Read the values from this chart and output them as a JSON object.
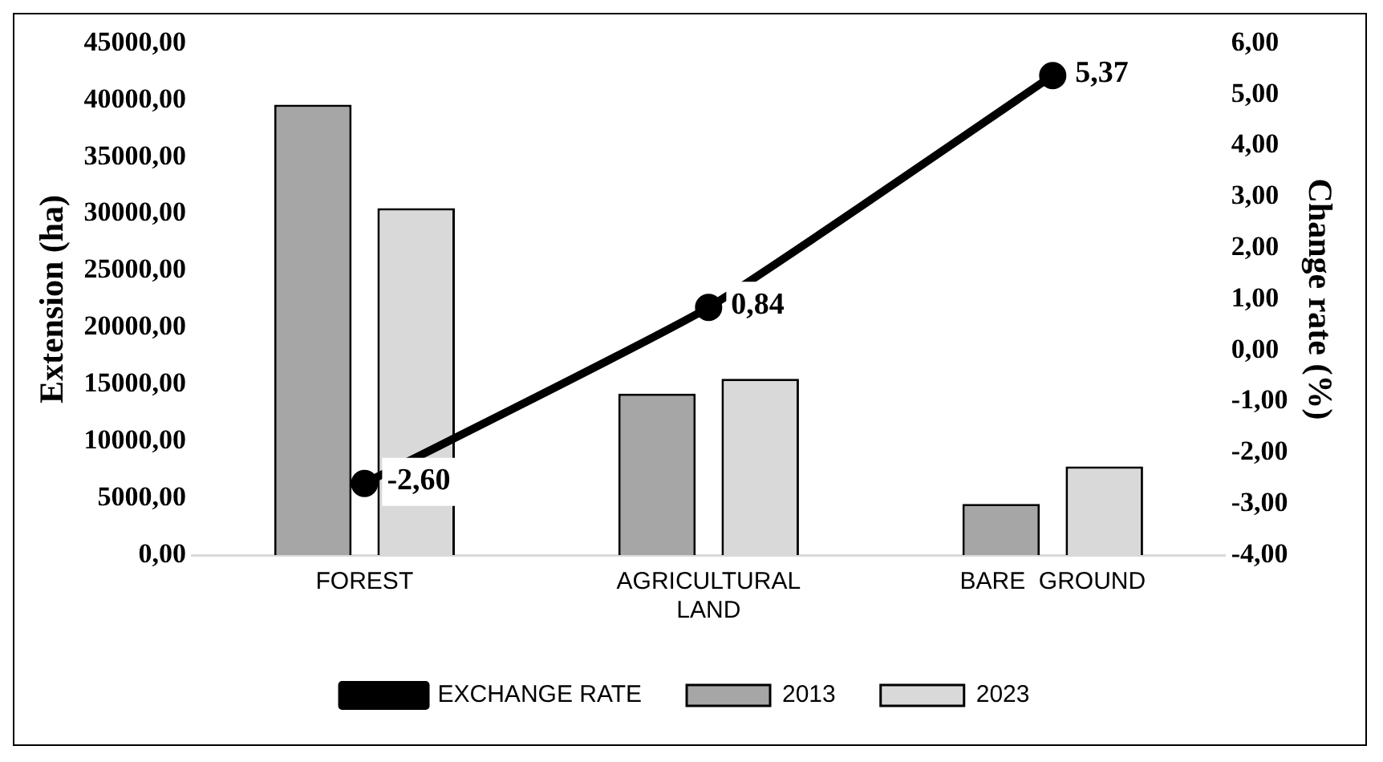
{
  "chart_data": {
    "type": "bar",
    "categories": [
      "FOREST",
      "AGRICULTURAL LAND",
      "BARE  GROUND"
    ],
    "ylabel": "Extension (ha)",
    "y2label": "Change rate (%)",
    "series": [
      {
        "name": "2013",
        "color": "#a6a6a6",
        "values": [
          39600,
          14200,
          4500
        ]
      },
      {
        "name": "2023",
        "color": "#d9d9d9",
        "values": [
          30500,
          15500,
          7800
        ]
      },
      {
        "name": "EXCHANGE RATE",
        "type": "line",
        "axis": "y2",
        "color": "#000000",
        "marker": "circle",
        "values": [
          -2.6,
          0.84,
          5.37
        ],
        "value_labels": [
          "-2,60",
          "0,84",
          "5,37"
        ]
      }
    ],
    "ylim": [
      0,
      45000
    ],
    "yticks": [
      {
        "value": 0,
        "label": "0,00"
      },
      {
        "value": 5000,
        "label": "5000,00"
      },
      {
        "value": 10000,
        "label": "10000,00"
      },
      {
        "value": 15000,
        "label": "15000,00"
      },
      {
        "value": 20000,
        "label": "20000,00"
      },
      {
        "value": 25000,
        "label": "25000,00"
      },
      {
        "value": 30000,
        "label": "30000,00"
      },
      {
        "value": 35000,
        "label": "35000,00"
      },
      {
        "value": 40000,
        "label": "40000,00"
      },
      {
        "value": 45000,
        "label": "45000,00"
      }
    ],
    "y2lim": [
      -4,
      6
    ],
    "y2ticks": [
      {
        "value": -4,
        "label": "-4,00"
      },
      {
        "value": -3,
        "label": "-3,00"
      },
      {
        "value": -2,
        "label": "-2,00"
      },
      {
        "value": -1,
        "label": "-1,00"
      },
      {
        "value": 0,
        "label": "0,00"
      },
      {
        "value": 1,
        "label": "1,00"
      },
      {
        "value": 2,
        "label": "2,00"
      },
      {
        "value": 3,
        "label": "3,00"
      },
      {
        "value": 4,
        "label": "4,00"
      },
      {
        "value": 5,
        "label": "5,00"
      },
      {
        "value": 6,
        "label": "6,00"
      }
    ],
    "grid": false,
    "legend": "bottom"
  }
}
